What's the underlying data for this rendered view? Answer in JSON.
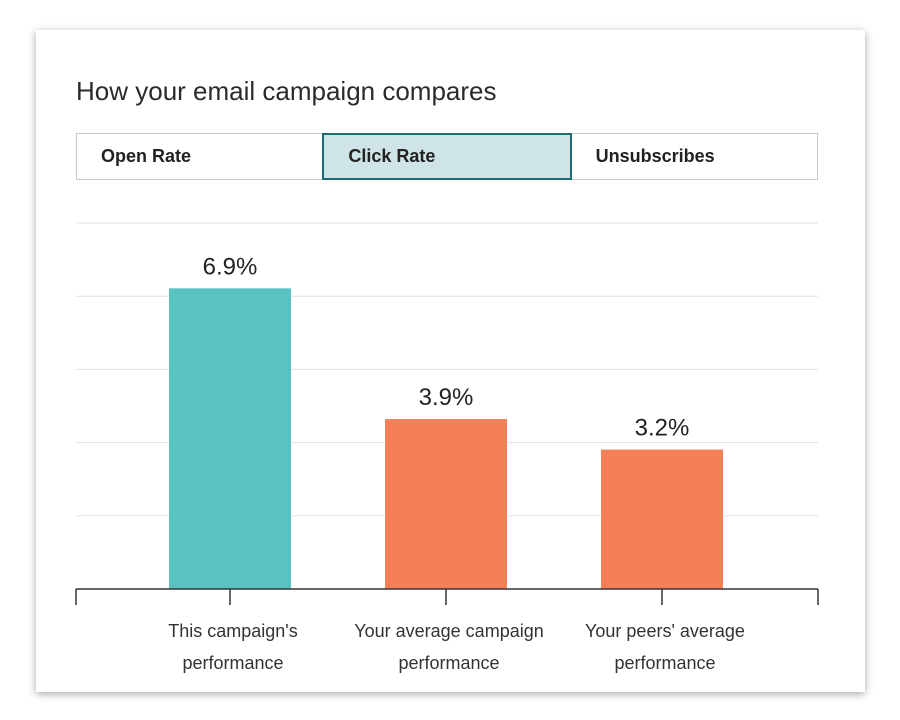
{
  "title": "How your email campaign compares",
  "tabs": [
    {
      "label": "Open Rate",
      "active": false
    },
    {
      "label": "Click Rate",
      "active": true
    },
    {
      "label": "Unsubscribes",
      "active": false
    }
  ],
  "colors": {
    "current": "#58c3c0",
    "comparison": "#f57f57",
    "active_tab_bg": "#cfe4e7",
    "active_tab_border": "#1b6b73"
  },
  "chart_data": {
    "type": "bar",
    "categories": [
      [
        "This campaign's",
        "performance"
      ],
      [
        "Your average campaign",
        "performance"
      ],
      [
        "Your peers' average",
        "performance"
      ]
    ],
    "values": [
      6.9,
      3.9,
      3.2
    ],
    "data_labels": [
      "6.9%",
      "3.9%",
      "3.2%"
    ],
    "bar_colors": [
      "#58c3c0",
      "#f57f57",
      "#f57f57"
    ],
    "ylim": [
      0,
      8.4
    ],
    "grid": true,
    "xlabel": "",
    "ylabel": ""
  }
}
